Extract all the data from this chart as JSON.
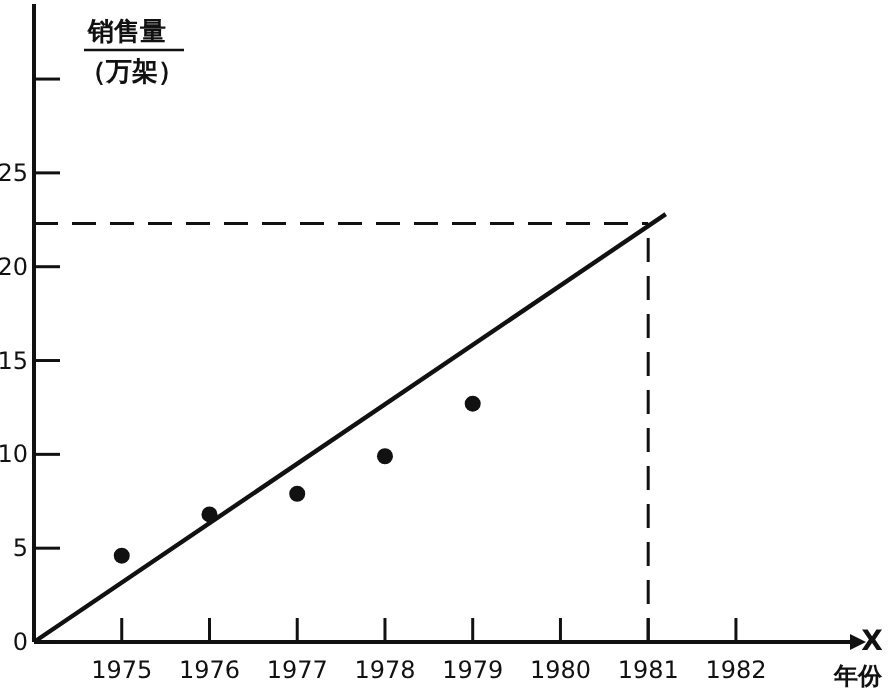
{
  "chart_data": {
    "type": "scatter",
    "xlabel": "X 年份",
    "ylabel": "销售量（万架）",
    "x": [
      1975,
      1976,
      1977,
      1978,
      1979
    ],
    "series": [
      {
        "type": "scatter",
        "color": "#111111",
        "values": [
          4.6,
          6.8,
          7.9,
          9.9,
          12.7
        ],
        "marker": "circle"
      },
      {
        "type": "line",
        "color": "#111111",
        "x": [
          1974,
          1981.2
        ],
        "values": [
          0,
          22.8
        ],
        "line_style": "solid"
      }
    ],
    "ref_lines": [
      {
        "axis": "y",
        "value": 22.3,
        "color": "#111111",
        "line_style": "dashed"
      },
      {
        "axis": "x",
        "value": 1981,
        "color": "#111111",
        "line_style": "dashed"
      }
    ],
    "xlim": [
      1974,
      1983.3
    ],
    "ylim": [
      0,
      34
    ],
    "xticks": [
      1975,
      1976,
      1977,
      1978,
      1979,
      1980,
      1981,
      1982
    ],
    "yticks": [
      0,
      5,
      10,
      15,
      20,
      25,
      {
        "value": 30,
        "label": null
      }
    ],
    "grid": false
  }
}
